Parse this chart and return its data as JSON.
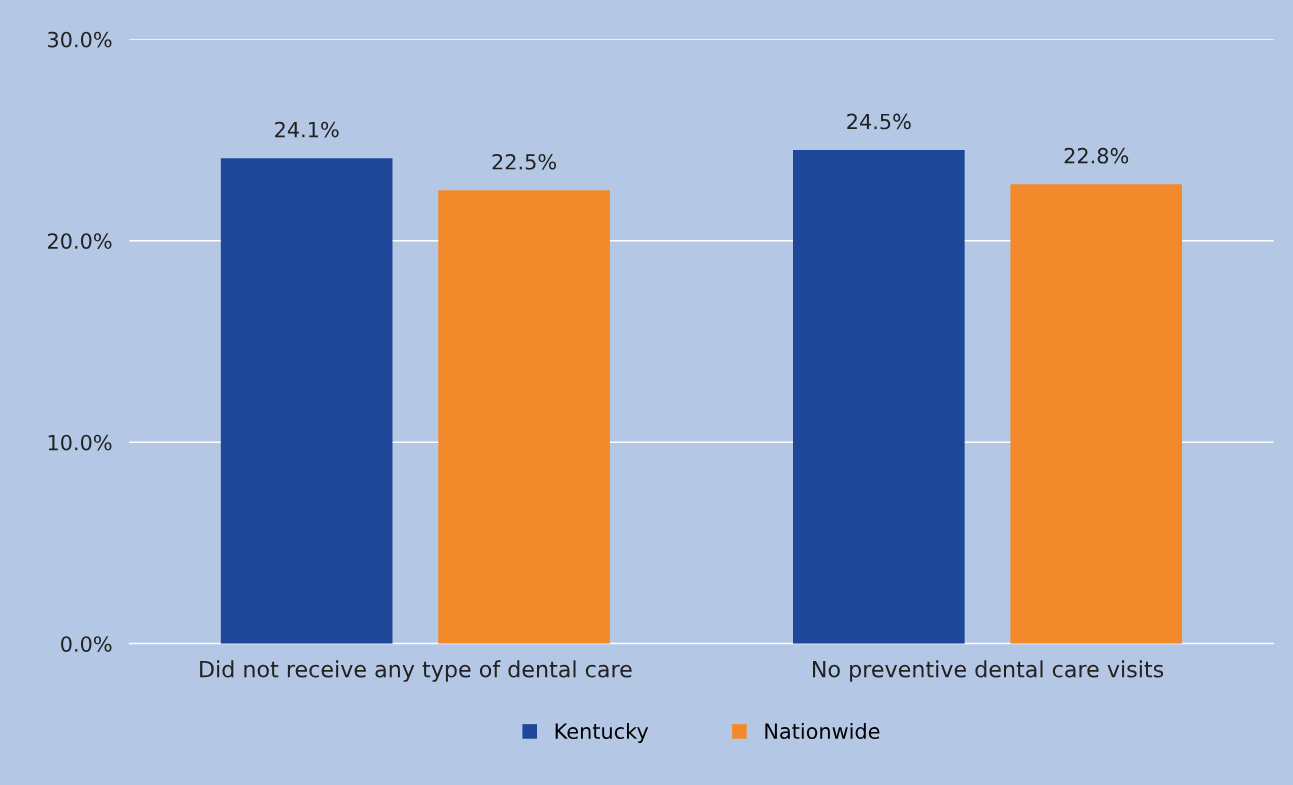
{
  "chart_data": {
    "type": "bar",
    "categories": [
      "Did not receive any type of dental care",
      "No preventive dental care visits"
    ],
    "series": [
      {
        "name": "Kentucky",
        "color": "#1f4799",
        "values": [
          24.1,
          24.5
        ]
      },
      {
        "name": "Nationwide",
        "color": "#f28a2c",
        "values": [
          22.5,
          22.8
        ]
      }
    ],
    "value_labels": [
      [
        "24.1%",
        "24.5%"
      ],
      [
        "22.5%",
        "22.8%"
      ]
    ],
    "ylim": [
      0,
      30
    ],
    "yticks": [
      {
        "value": 0,
        "label": "0.0%"
      },
      {
        "value": 10,
        "label": "10.0%"
      },
      {
        "value": 20,
        "label": "20.0%"
      },
      {
        "value": 30,
        "label": "30.0%"
      }
    ],
    "grid": "y",
    "legend": "bottom"
  }
}
